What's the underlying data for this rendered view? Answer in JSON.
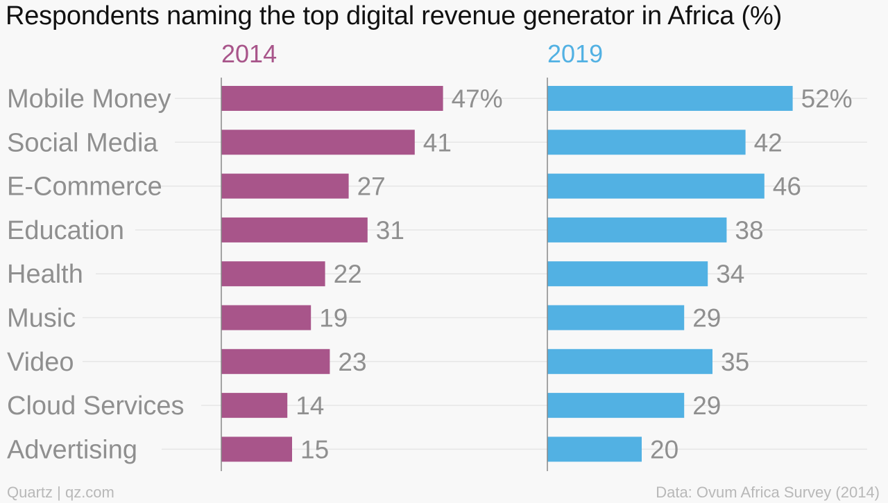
{
  "title": "Respondents naming the top digital revenue generator in Africa (%)",
  "footer": {
    "credit": "Quartz | qz.com",
    "source": "Data: Ovum Africa Survey (2014)"
  },
  "colors": {
    "series_2014": "#a8558a",
    "series_2019": "#52b1e3",
    "label_text": "#8f8f8f",
    "axis_line": "#888888",
    "guide_line": "#e6e6e6"
  },
  "chart_data": {
    "type": "bar",
    "orientation": "horizontal",
    "title": "Respondents naming the top digital revenue generator in Africa (%)",
    "categories": [
      "Mobile Money",
      "Social Media",
      "E-Commerce",
      "Education",
      "Health",
      "Music",
      "Video",
      "Cloud Services",
      "Advertising"
    ],
    "series": [
      {
        "name": "2014",
        "values": [
          47,
          41,
          27,
          31,
          22,
          19,
          23,
          14,
          15
        ],
        "labels": [
          "47%",
          "41",
          "27",
          "31",
          "22",
          "19",
          "23",
          "14",
          "15"
        ]
      },
      {
        "name": "2019",
        "values": [
          52,
          42,
          46,
          38,
          34,
          29,
          35,
          29,
          20
        ],
        "labels": [
          "52%",
          "42",
          "46",
          "38",
          "34",
          "29",
          "35",
          "29",
          "20"
        ]
      }
    ],
    "xlim": [
      0,
      60
    ],
    "grid": false,
    "legend": "panel-titles"
  }
}
